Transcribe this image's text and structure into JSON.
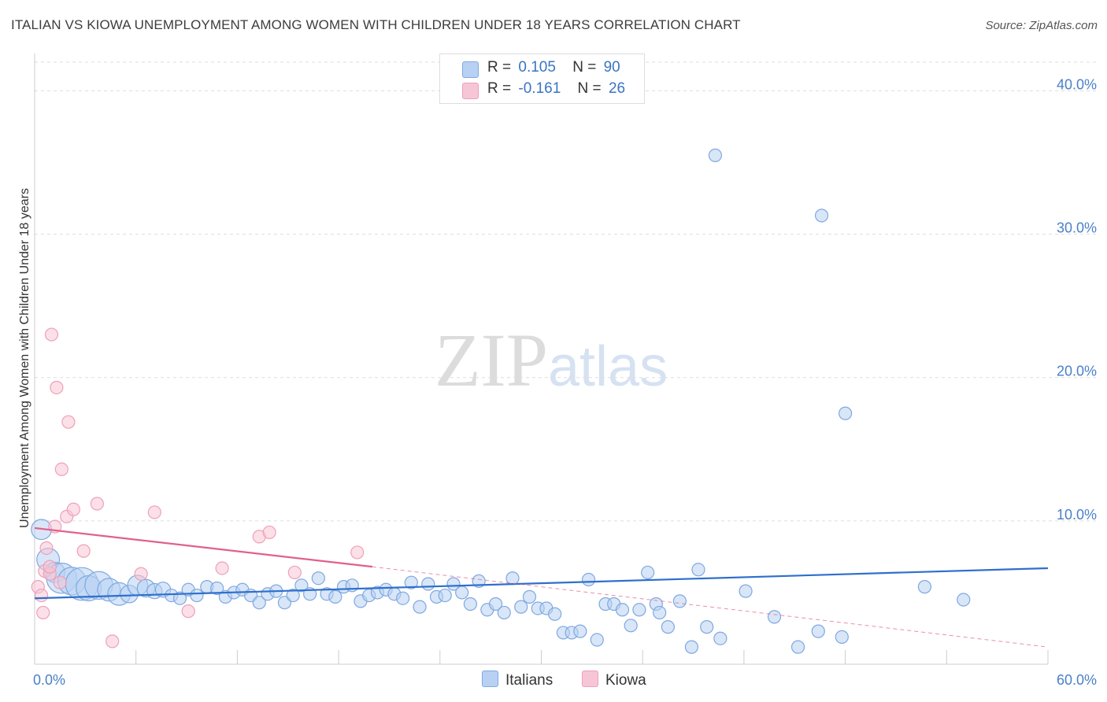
{
  "title": "ITALIAN VS KIOWA UNEMPLOYMENT AMONG WOMEN WITH CHILDREN UNDER 18 YEARS CORRELATION CHART",
  "source": "Source: ZipAtlas.com",
  "watermark": {
    "zip": "ZIP",
    "atlas": "atlas"
  },
  "legend": {
    "r_label": "R =",
    "n_label": "N =",
    "italians": {
      "r": "0.105",
      "n": "90"
    },
    "kiowa": {
      "r": "-0.161",
      "n": "26"
    }
  },
  "colors": {
    "italians_fill": "#b8d1f3",
    "italians_stroke": "#7fa8e0",
    "italians_line": "#2f6fcc",
    "kiowa_fill": "#f7c6d6",
    "kiowa_stroke": "#ef9fba",
    "kiowa_line": "#e0608e",
    "grid": "#dddddd",
    "tick": "#4a80c8"
  },
  "chart_data": {
    "type": "scatter",
    "title": "ITALIAN VS KIOWA UNEMPLOYMENT AMONG WOMEN WITH CHILDREN UNDER 18 YEARS CORRELATION CHART",
    "xlabel": "",
    "ylabel": "Unemployment Among Women with Children Under 18 years",
    "xlim": [
      0,
      60
    ],
    "ylim": [
      0,
      42
    ],
    "x_tick_labels": [
      {
        "value": 0,
        "label": "0.0%"
      },
      {
        "value": 60,
        "label": "60.0%"
      }
    ],
    "y_tick_labels": [
      {
        "value": 10,
        "label": "10.0%"
      },
      {
        "value": 20,
        "label": "20.0%"
      },
      {
        "value": 30,
        "label": "30.0%"
      },
      {
        "value": 40,
        "label": "40.0%"
      }
    ],
    "legend_position": "top-center",
    "series": [
      {
        "name": "Italians",
        "trend": {
          "x0": 0,
          "y0": 4.6,
          "x1": 60,
          "y1": 6.7
        },
        "points": [
          [
            0.4,
            9.4,
            1.6
          ],
          [
            0.8,
            7.3,
            1.8
          ],
          [
            1.2,
            6.4,
            1.6
          ],
          [
            1.6,
            6.0,
            2.4
          ],
          [
            2.2,
            5.8,
            2.2
          ],
          [
            2.8,
            5.6,
            2.6
          ],
          [
            3.2,
            5.3,
            2.0
          ],
          [
            3.8,
            5.5,
            2.2
          ],
          [
            4.4,
            5.2,
            1.8
          ],
          [
            5.0,
            4.9,
            1.8
          ],
          [
            5.6,
            4.9,
            1.4
          ],
          [
            6.1,
            5.5,
            1.6
          ],
          [
            6.6,
            5.3,
            1.4
          ],
          [
            7.1,
            5.1,
            1.2
          ],
          [
            7.6,
            5.2,
            1.2
          ],
          [
            8.1,
            4.8,
            1.0
          ],
          [
            8.6,
            4.6,
            1.0
          ],
          [
            9.1,
            5.2,
            1.0
          ],
          [
            9.6,
            4.8,
            1.0
          ],
          [
            10.2,
            5.4,
            1.0
          ],
          [
            10.8,
            5.3,
            1.0
          ],
          [
            11.3,
            4.7,
            1.0
          ],
          [
            11.8,
            5.0,
            1.0
          ],
          [
            12.3,
            5.2,
            1.0
          ],
          [
            12.8,
            4.8,
            1.0
          ],
          [
            13.3,
            4.3,
            1.0
          ],
          [
            13.8,
            4.9,
            1.0
          ],
          [
            14.3,
            5.1,
            1.0
          ],
          [
            14.8,
            4.3,
            1.0
          ],
          [
            15.3,
            4.8,
            1.0
          ],
          [
            15.8,
            5.5,
            1.0
          ],
          [
            16.3,
            4.9,
            1.0
          ],
          [
            16.8,
            6.0,
            1.0
          ],
          [
            17.3,
            4.9,
            1.0
          ],
          [
            17.8,
            4.7,
            1.0
          ],
          [
            18.3,
            5.4,
            1.0
          ],
          [
            18.8,
            5.5,
            1.0
          ],
          [
            19.3,
            4.4,
            1.0
          ],
          [
            19.8,
            4.8,
            1.0
          ],
          [
            20.3,
            5.0,
            1.0
          ],
          [
            20.8,
            5.2,
            1.0
          ],
          [
            21.3,
            4.9,
            1.0
          ],
          [
            21.8,
            4.6,
            1.0
          ],
          [
            22.3,
            5.7,
            1.0
          ],
          [
            22.8,
            4.0,
            1.0
          ],
          [
            23.3,
            5.6,
            1.0
          ],
          [
            23.8,
            4.7,
            1.0
          ],
          [
            24.3,
            4.8,
            1.0
          ],
          [
            24.8,
            5.6,
            1.0
          ],
          [
            25.3,
            5.0,
            1.0
          ],
          [
            25.8,
            4.2,
            1.0
          ],
          [
            26.3,
            5.8,
            1.0
          ],
          [
            26.8,
            3.8,
            1.0
          ],
          [
            27.3,
            4.2,
            1.0
          ],
          [
            27.8,
            3.6,
            1.0
          ],
          [
            28.3,
            6.0,
            1.0
          ],
          [
            28.8,
            4.0,
            1.0
          ],
          [
            29.3,
            4.7,
            1.0
          ],
          [
            29.8,
            3.9,
            1.0
          ],
          [
            30.3,
            3.9,
            1.0
          ],
          [
            30.8,
            3.5,
            1.0
          ],
          [
            31.3,
            2.2,
            1.0
          ],
          [
            31.8,
            2.2,
            1.0
          ],
          [
            32.3,
            2.3,
            1.0
          ],
          [
            32.8,
            5.9,
            1.0
          ],
          [
            33.3,
            1.7,
            1.0
          ],
          [
            33.8,
            4.2,
            1.0
          ],
          [
            34.3,
            4.2,
            1.0
          ],
          [
            34.8,
            3.8,
            1.0
          ],
          [
            35.3,
            2.7,
            1.0
          ],
          [
            35.8,
            3.8,
            1.0
          ],
          [
            36.3,
            6.4,
            1.0
          ],
          [
            36.8,
            4.2,
            1.0
          ],
          [
            37.5,
            2.6,
            1.0
          ],
          [
            38.2,
            4.4,
            1.0
          ],
          [
            38.9,
            1.2,
            1.0
          ],
          [
            39.3,
            6.6,
            1.0
          ],
          [
            39.8,
            2.6,
            1.0
          ],
          [
            40.6,
            1.8,
            1.0
          ],
          [
            40.3,
            35.5,
            1.0
          ],
          [
            42.1,
            5.1,
            1.0
          ],
          [
            43.8,
            3.3,
            1.0
          ],
          [
            45.2,
            1.2,
            1.0
          ],
          [
            46.4,
            2.3,
            1.0
          ],
          [
            46.6,
            31.3,
            1.0
          ],
          [
            47.8,
            1.9,
            1.0
          ],
          [
            48.0,
            17.5,
            1.0
          ],
          [
            52.7,
            5.4,
            1.0
          ],
          [
            55.0,
            4.5,
            1.0
          ],
          [
            37.0,
            3.6,
            1.0
          ]
        ]
      },
      {
        "name": "Kiowa",
        "trend": {
          "x0": 0,
          "y0": 9.5,
          "x1": 20,
          "y1": 6.8
        },
        "trend_dashed_extension": {
          "x0": 20,
          "y0": 6.8,
          "x1": 60,
          "y1": 1.2
        },
        "points": [
          [
            0.2,
            5.4,
            1.0
          ],
          [
            0.4,
            4.8,
            1.0
          ],
          [
            0.5,
            3.6,
            1.0
          ],
          [
            0.6,
            6.5,
            1.0
          ],
          [
            0.7,
            8.1,
            1.0
          ],
          [
            0.9,
            6.3,
            1.0
          ],
          [
            1.0,
            23.0,
            1.0
          ],
          [
            1.2,
            9.6,
            1.0
          ],
          [
            1.3,
            19.3,
            1.0
          ],
          [
            1.5,
            5.7,
            1.0
          ],
          [
            1.6,
            13.6,
            1.0
          ],
          [
            1.9,
            10.3,
            1.0
          ],
          [
            2.0,
            16.9,
            1.0
          ],
          [
            2.3,
            10.8,
            1.0
          ],
          [
            2.9,
            7.9,
            1.0
          ],
          [
            3.7,
            11.2,
            1.0
          ],
          [
            4.6,
            1.6,
            1.0
          ],
          [
            6.3,
            6.3,
            1.0
          ],
          [
            7.1,
            10.6,
            1.0
          ],
          [
            9.1,
            3.7,
            1.0
          ],
          [
            11.1,
            6.7,
            1.0
          ],
          [
            13.3,
            8.9,
            1.0
          ],
          [
            13.9,
            9.2,
            1.0
          ],
          [
            15.4,
            6.4,
            1.0
          ],
          [
            19.1,
            7.8,
            1.0
          ],
          [
            0.9,
            6.8,
            1.0
          ]
        ]
      }
    ]
  }
}
